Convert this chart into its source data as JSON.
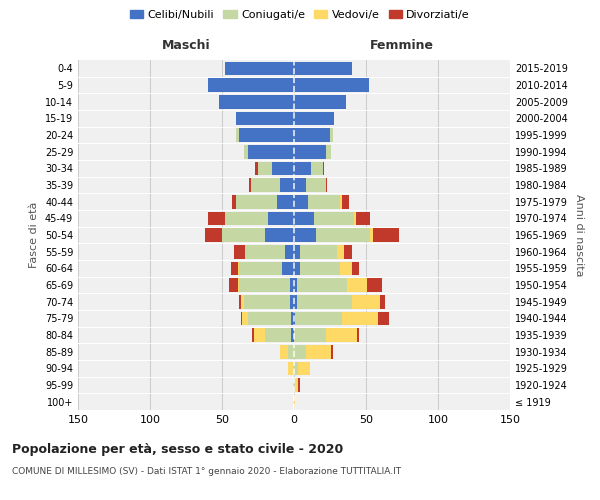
{
  "age_groups": [
    "100+",
    "95-99",
    "90-94",
    "85-89",
    "80-84",
    "75-79",
    "70-74",
    "65-69",
    "60-64",
    "55-59",
    "50-54",
    "45-49",
    "40-44",
    "35-39",
    "30-34",
    "25-29",
    "20-24",
    "15-19",
    "10-14",
    "5-9",
    "0-4"
  ],
  "birth_years": [
    "≤ 1919",
    "1920-1924",
    "1925-1929",
    "1930-1934",
    "1935-1939",
    "1940-1944",
    "1945-1949",
    "1950-1954",
    "1955-1959",
    "1960-1964",
    "1965-1969",
    "1970-1974",
    "1975-1979",
    "1980-1984",
    "1985-1989",
    "1990-1994",
    "1995-1999",
    "2000-2004",
    "2005-2009",
    "2010-2014",
    "2015-2019"
  ],
  "colors": {
    "celibe": "#4472C4",
    "coniugato": "#C5D8A4",
    "vedovo": "#FFD966",
    "divorziato": "#C0392B"
  },
  "males": {
    "celibe": [
      0,
      0,
      0,
      0,
      2,
      2,
      3,
      3,
      8,
      6,
      20,
      18,
      12,
      10,
      15,
      32,
      38,
      40,
      52,
      60,
      48
    ],
    "coniugato": [
      0,
      0,
      1,
      4,
      18,
      30,
      32,
      35,
      30,
      28,
      30,
      30,
      28,
      20,
      10,
      3,
      2,
      0,
      0,
      0,
      0
    ],
    "vedovo": [
      0,
      1,
      3,
      6,
      8,
      4,
      2,
      1,
      1,
      0,
      0,
      0,
      0,
      0,
      0,
      0,
      0,
      0,
      0,
      0,
      0
    ],
    "divorziato": [
      0,
      0,
      0,
      0,
      1,
      1,
      1,
      6,
      5,
      8,
      12,
      12,
      3,
      1,
      2,
      0,
      0,
      0,
      0,
      0,
      0
    ]
  },
  "females": {
    "nubile": [
      0,
      0,
      0,
      0,
      0,
      1,
      2,
      2,
      4,
      4,
      15,
      14,
      10,
      8,
      12,
      22,
      25,
      28,
      36,
      52,
      40
    ],
    "coniugata": [
      0,
      1,
      3,
      8,
      22,
      32,
      38,
      35,
      28,
      26,
      38,
      28,
      22,
      14,
      8,
      4,
      2,
      0,
      0,
      0,
      0
    ],
    "vedova": [
      1,
      2,
      8,
      18,
      22,
      25,
      20,
      14,
      8,
      5,
      2,
      1,
      1,
      0,
      0,
      0,
      0,
      0,
      0,
      0,
      0
    ],
    "divorziata": [
      0,
      1,
      0,
      1,
      1,
      8,
      3,
      10,
      5,
      5,
      18,
      10,
      5,
      1,
      1,
      0,
      0,
      0,
      0,
      0,
      0
    ]
  },
  "title": "Popolazione per età, sesso e stato civile - 2020",
  "subtitle": "COMUNE DI MILLESIMO (SV) - Dati ISTAT 1° gennaio 2020 - Elaborazione TUTTITALIA.IT",
  "xlabel_left": "Maschi",
  "xlabel_right": "Femmine",
  "ylabel_left": "Fasce di età",
  "ylabel_right": "Anni di nascita",
  "xlim": 150,
  "legend_labels": [
    "Celibi/Nubili",
    "Coniugati/e",
    "Vedovi/e",
    "Divorziati/e"
  ],
  "background_color": "#f0f0f0"
}
